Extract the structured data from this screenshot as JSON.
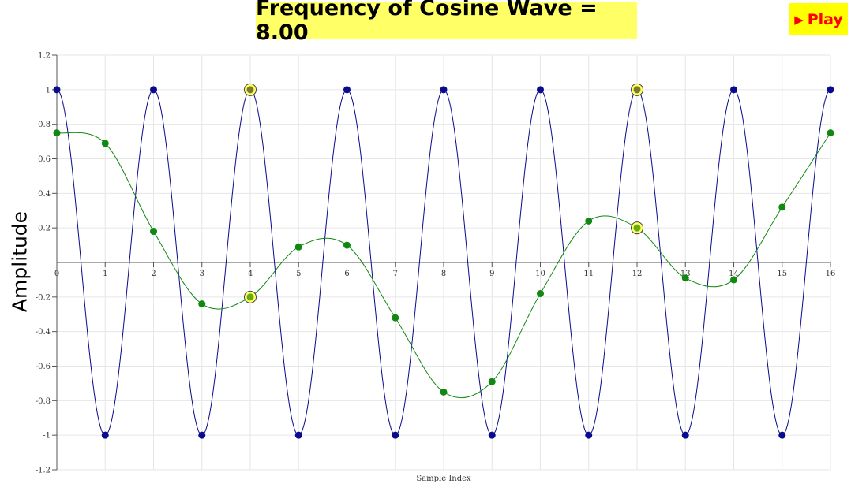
{
  "header": {
    "title": "Frequency of Cosine Wave = 8.00",
    "play_label": "Play",
    "play_icon": "play-triangle-icon"
  },
  "colors": {
    "title_bg": "#ffff66",
    "play_bg": "#ffff00",
    "play_text": "#ff0000",
    "blue_series": "#0a0a8c",
    "green_series": "#118811",
    "highlight": "#ffff66"
  },
  "chart_data": {
    "type": "line",
    "xlabel": "Sample Index",
    "ylabel": "Amplitude",
    "xlim": [
      0,
      16
    ],
    "ylim": [
      -1.2,
      1.2
    ],
    "x_ticks": [
      "0",
      "1",
      "2",
      "3",
      "4",
      "5",
      "6",
      "7",
      "8",
      "9",
      "10",
      "11",
      "12",
      "13",
      "14",
      "15",
      "16"
    ],
    "y_ticks": [
      "1.2",
      "1",
      "0.8",
      "0.6",
      "0.4",
      "0.2",
      "-0.2",
      "-0.4",
      "-0.6",
      "-0.8",
      "-1",
      "-1.2"
    ],
    "y_tick_values": [
      1.2,
      1,
      0.8,
      0.6,
      0.4,
      0.2,
      -0.2,
      -0.4,
      -0.6,
      -0.8,
      -1,
      -1.2
    ],
    "grid": true,
    "series": [
      {
        "color": "#0a0a8c",
        "x": [
          0,
          1,
          2,
          3,
          4,
          5,
          6,
          7,
          8,
          9,
          10,
          11,
          12,
          13,
          14,
          15,
          16
        ],
        "values": [
          1,
          -1,
          1,
          -1,
          1,
          -1,
          1,
          -1,
          1,
          -1,
          1,
          -1,
          1,
          -1,
          1,
          -1,
          1
        ]
      },
      {
        "color": "#118811",
        "x": [
          0,
          1,
          2,
          3,
          4,
          5,
          6,
          7,
          8,
          9,
          10,
          11,
          12,
          13,
          14,
          15,
          16
        ],
        "values": [
          0.75,
          0.69,
          0.18,
          -0.24,
          -0.2,
          0.09,
          0.1,
          -0.32,
          -0.75,
          -0.69,
          -0.18,
          0.24,
          0.2,
          -0.09,
          -0.1,
          0.32,
          0.75
        ]
      }
    ],
    "highlighted_x": [
      4,
      12
    ]
  }
}
